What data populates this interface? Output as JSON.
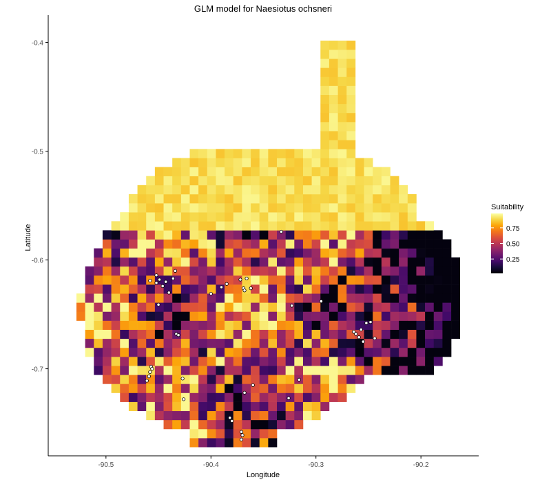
{
  "chart_data": {
    "type": "heatmap",
    "title": "GLM model for Naesiotus ochsneri",
    "xlabel": "Longitude",
    "ylabel": "Latitude",
    "xlim": [
      -90.555,
      -90.145
    ],
    "ylim": [
      -0.78,
      -0.375
    ],
    "x_ticks": [
      {
        "value": -90.5,
        "label": "-90.5"
      },
      {
        "value": -90.4,
        "label": "-90.4"
      },
      {
        "value": -90.3,
        "label": "-90.3"
      },
      {
        "value": -90.2,
        "label": "-90.2"
      }
    ],
    "y_ticks": [
      {
        "value": -0.4,
        "label": "-0.4"
      },
      {
        "value": -0.5,
        "label": "-0.5"
      },
      {
        "value": -0.6,
        "label": "-0.6"
      },
      {
        "value": -0.7,
        "label": "-0.7"
      }
    ],
    "grid": false,
    "cell_size_deg": 0.0083,
    "legend": {
      "title": "Suitability",
      "position": "right",
      "colormap": "inferno",
      "range": [
        0.02,
        0.98
      ],
      "ticks": [
        {
          "value": 0.25,
          "label": "0.25"
        },
        {
          "value": 0.5,
          "label": "0.50"
        },
        {
          "value": 0.75,
          "label": "0.75"
        }
      ]
    },
    "colors": {
      "low": "#000004",
      "mid": "#bc3754",
      "high": "#fcffa4",
      "point_fill": "#ffffff",
      "point_stroke": "#000000"
    },
    "occurrences": [
      {
        "lon": -90.458,
        "lat": -0.619
      },
      {
        "lon": -90.452,
        "lat": -0.621
      },
      {
        "lon": -90.449,
        "lat": -0.618
      },
      {
        "lon": -90.446,
        "lat": -0.624
      },
      {
        "lon": -90.443,
        "lat": -0.62
      },
      {
        "lon": -90.44,
        "lat": -0.63
      },
      {
        "lon": -90.452,
        "lat": -0.614
      },
      {
        "lon": -90.436,
        "lat": -0.617
      },
      {
        "lon": -90.434,
        "lat": -0.61
      },
      {
        "lon": -90.45,
        "lat": -0.641
      },
      {
        "lon": -90.433,
        "lat": -0.668
      },
      {
        "lon": -90.431,
        "lat": -0.669
      },
      {
        "lon": -90.457,
        "lat": -0.698
      },
      {
        "lon": -90.458,
        "lat": -0.703
      },
      {
        "lon": -90.459,
        "lat": -0.707
      },
      {
        "lon": -90.461,
        "lat": -0.711
      },
      {
        "lon": -90.456,
        "lat": -0.7
      },
      {
        "lon": -90.427,
        "lat": -0.709
      },
      {
        "lon": -90.426,
        "lat": -0.728
      },
      {
        "lon": -90.4,
        "lat": -0.631
      },
      {
        "lon": -90.39,
        "lat": -0.625
      },
      {
        "lon": -90.385,
        "lat": -0.622
      },
      {
        "lon": -90.372,
        "lat": -0.618
      },
      {
        "lon": -90.369,
        "lat": -0.626
      },
      {
        "lon": -90.366,
        "lat": -0.617
      },
      {
        "lon": -90.362,
        "lat": -0.626
      },
      {
        "lon": -90.368,
        "lat": -0.628
      },
      {
        "lon": -90.333,
        "lat": -0.574
      },
      {
        "lon": -90.323,
        "lat": -0.642
      },
      {
        "lon": -90.295,
        "lat": -0.638
      },
      {
        "lon": -90.316,
        "lat": -0.71
      },
      {
        "lon": -90.326,
        "lat": -0.727
      },
      {
        "lon": -90.36,
        "lat": -0.715
      },
      {
        "lon": -90.368,
        "lat": -0.722
      },
      {
        "lon": -90.382,
        "lat": -0.745
      },
      {
        "lon": -90.38,
        "lat": -0.748
      },
      {
        "lon": -90.371,
        "lat": -0.758
      },
      {
        "lon": -90.37,
        "lat": -0.761
      },
      {
        "lon": -90.371,
        "lat": -0.765
      },
      {
        "lon": -90.264,
        "lat": -0.666
      },
      {
        "lon": -90.262,
        "lat": -0.668
      },
      {
        "lon": -90.257,
        "lat": -0.664
      },
      {
        "lon": -90.252,
        "lat": -0.658
      },
      {
        "lon": -90.248,
        "lat": -0.657
      },
      {
        "lon": -90.244,
        "lat": -0.672
      },
      {
        "lon": -90.259,
        "lat": -0.671
      },
      {
        "lon": -90.255,
        "lat": -0.675
      }
    ]
  }
}
